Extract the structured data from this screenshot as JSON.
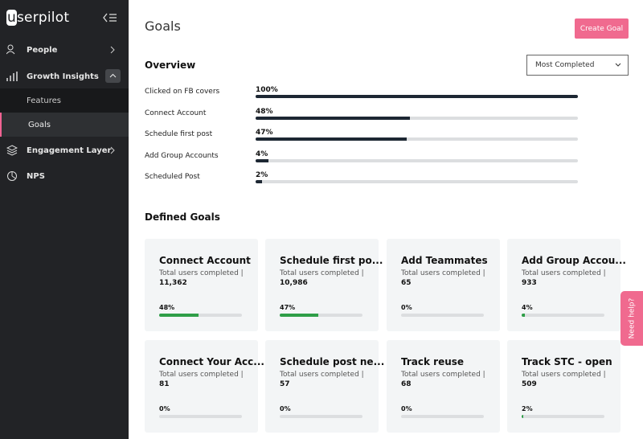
{
  "sidebar": {
    "logo": "userpilot",
    "nav": [
      {
        "label": "People"
      },
      {
        "label": "Growth Insights"
      },
      {
        "label": "Features"
      },
      {
        "label": "Goals"
      },
      {
        "label": "Engagement Layer"
      },
      {
        "label": "NPS"
      }
    ]
  },
  "header": {
    "title": "Goals",
    "button": "Create Goal"
  },
  "overview": {
    "title": "Overview",
    "sort": "Most Completed",
    "rows": [
      {
        "label": "Clicked on FB covers",
        "percent": 100,
        "percent_label": "100%"
      },
      {
        "label": "Connect Account",
        "percent": 48,
        "percent_label": "48%"
      },
      {
        "label": "Schedule first post",
        "percent": 47,
        "percent_label": "47%"
      },
      {
        "label": "Add Group Accounts",
        "percent": 4,
        "percent_label": "4%"
      },
      {
        "label": "Scheduled Post",
        "percent": 2,
        "percent_label": "2%"
      }
    ]
  },
  "defined_goals": {
    "title": "Defined Goals",
    "cards": [
      {
        "name": "Connect Account",
        "subtitle": "Total users completed |",
        "count": "11,362",
        "percent": 48,
        "percent_label": "48%"
      },
      {
        "name": "Schedule first po...",
        "subtitle": "Total users completed |",
        "count": "10,986",
        "percent": 47,
        "percent_label": "47%"
      },
      {
        "name": "Add Teammates",
        "subtitle": "Total users completed |",
        "count": "65",
        "percent": 0,
        "percent_label": "0%"
      },
      {
        "name": "Add Group Accou...",
        "subtitle": "Total users completed |",
        "count": "933",
        "percent": 4,
        "percent_label": "4%"
      },
      {
        "name": "Connect Your Acc...",
        "subtitle": "Total users completed |",
        "count": "81",
        "percent": 0,
        "percent_label": "0%"
      },
      {
        "name": "Schedule post ne...",
        "subtitle": "Total users completed |",
        "count": "57",
        "percent": 0,
        "percent_label": "0%"
      },
      {
        "name": "Track reuse",
        "subtitle": "Total users completed |",
        "count": "68",
        "percent": 0,
        "percent_label": "0%"
      },
      {
        "name": "Track STC - open",
        "subtitle": "Total users completed |",
        "count": "509",
        "percent": 2,
        "percent_label": "2%"
      }
    ]
  },
  "help": "Need help?"
}
